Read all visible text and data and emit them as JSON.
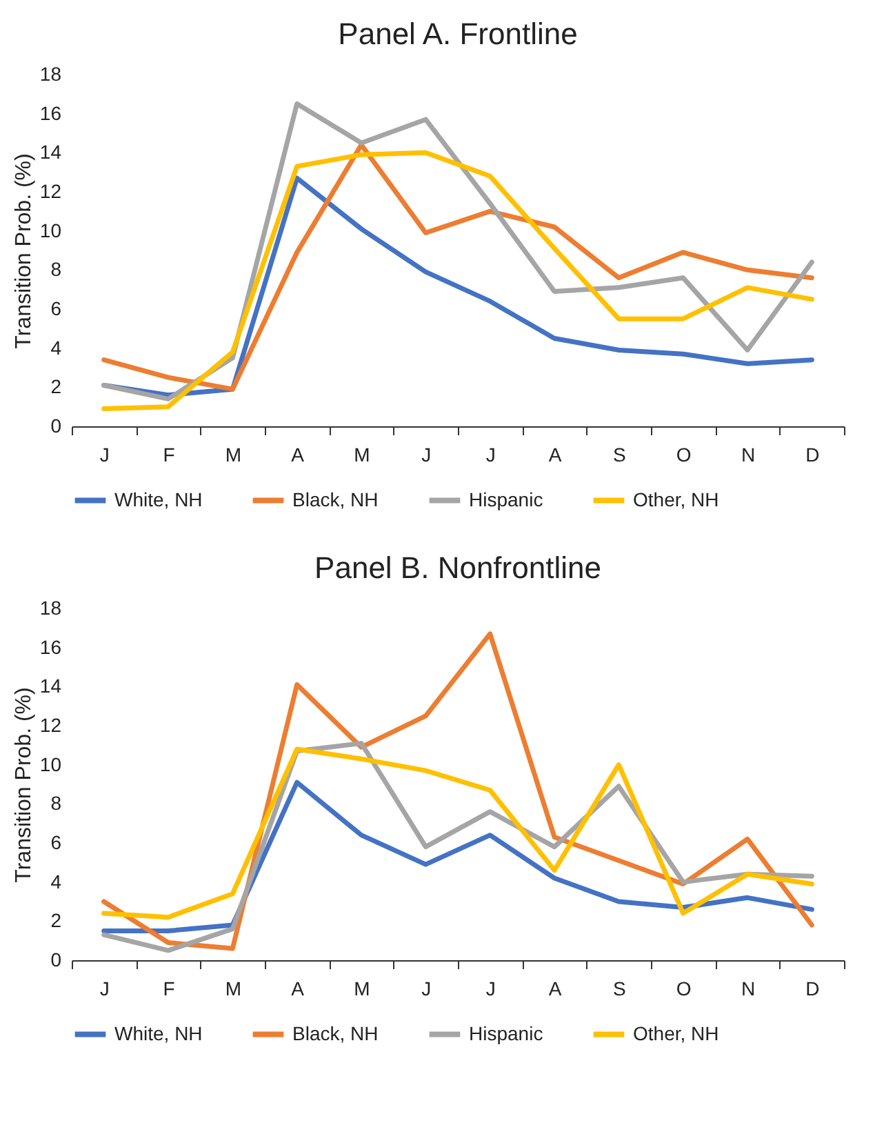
{
  "chart_data": [
    {
      "type": "line",
      "title": "Panel A. Frontline",
      "ylabel": "Transition Prob.  (%)",
      "categories": [
        "J",
        "F",
        "M",
        "A",
        "M",
        "J",
        "J",
        "A",
        "S",
        "O",
        "N",
        "D"
      ],
      "ylim": [
        0,
        18
      ],
      "yticks": [
        0,
        2,
        4,
        6,
        8,
        10,
        12,
        14,
        16,
        18
      ],
      "grid": false,
      "legend": "bottom",
      "series": [
        {
          "name": "White, NH",
          "color": "#4472c4",
          "values": [
            2.1,
            1.6,
            1.9,
            12.7,
            10.1,
            7.9,
            6.4,
            4.5,
            3.9,
            3.7,
            3.2,
            3.4
          ]
        },
        {
          "name": "Black, NH",
          "color": "#ed7d31",
          "values": [
            3.4,
            2.5,
            1.9,
            8.9,
            14.4,
            9.9,
            11.0,
            10.2,
            7.6,
            8.9,
            8.0,
            7.6
          ]
        },
        {
          "name": "Hispanic",
          "color": "#a5a5a5",
          "values": [
            2.1,
            1.4,
            3.5,
            16.5,
            14.5,
            15.7,
            11.4,
            6.9,
            7.1,
            7.6,
            3.9,
            8.4
          ]
        },
        {
          "name": "Other, NH",
          "color": "#ffc000",
          "values": [
            0.9,
            1.0,
            3.8,
            13.3,
            13.9,
            14.0,
            12.8,
            9.1,
            5.5,
            5.5,
            7.1,
            6.5
          ]
        }
      ]
    },
    {
      "type": "line",
      "title": "Panel B. Nonfrontline",
      "ylabel": "Transition Prob.  (%)",
      "categories": [
        "J",
        "F",
        "M",
        "A",
        "M",
        "J",
        "J",
        "A",
        "S",
        "O",
        "N",
        "D"
      ],
      "ylim": [
        0,
        18
      ],
      "yticks": [
        0,
        2,
        4,
        6,
        8,
        10,
        12,
        14,
        16,
        18
      ],
      "grid": false,
      "legend": "bottom",
      "series": [
        {
          "name": "White, NH",
          "color": "#4472c4",
          "values": [
            1.5,
            1.5,
            1.8,
            9.1,
            6.4,
            4.9,
            6.4,
            4.2,
            3.0,
            2.7,
            3.2,
            2.6
          ]
        },
        {
          "name": "Black, NH",
          "color": "#ed7d31",
          "values": [
            3.0,
            0.9,
            0.6,
            14.1,
            10.9,
            12.5,
            16.7,
            6.3,
            5.1,
            3.9,
            6.2,
            1.8
          ]
        },
        {
          "name": "Hispanic",
          "color": "#a5a5a5",
          "values": [
            1.3,
            0.5,
            1.6,
            10.7,
            11.1,
            5.8,
            7.6,
            5.8,
            8.9,
            4.0,
            4.4,
            4.3
          ]
        },
        {
          "name": "Other, NH",
          "color": "#ffc000",
          "values": [
            2.4,
            2.2,
            3.4,
            10.8,
            10.3,
            9.7,
            8.7,
            4.6,
            10.0,
            2.4,
            4.4,
            3.9
          ]
        }
      ]
    }
  ]
}
